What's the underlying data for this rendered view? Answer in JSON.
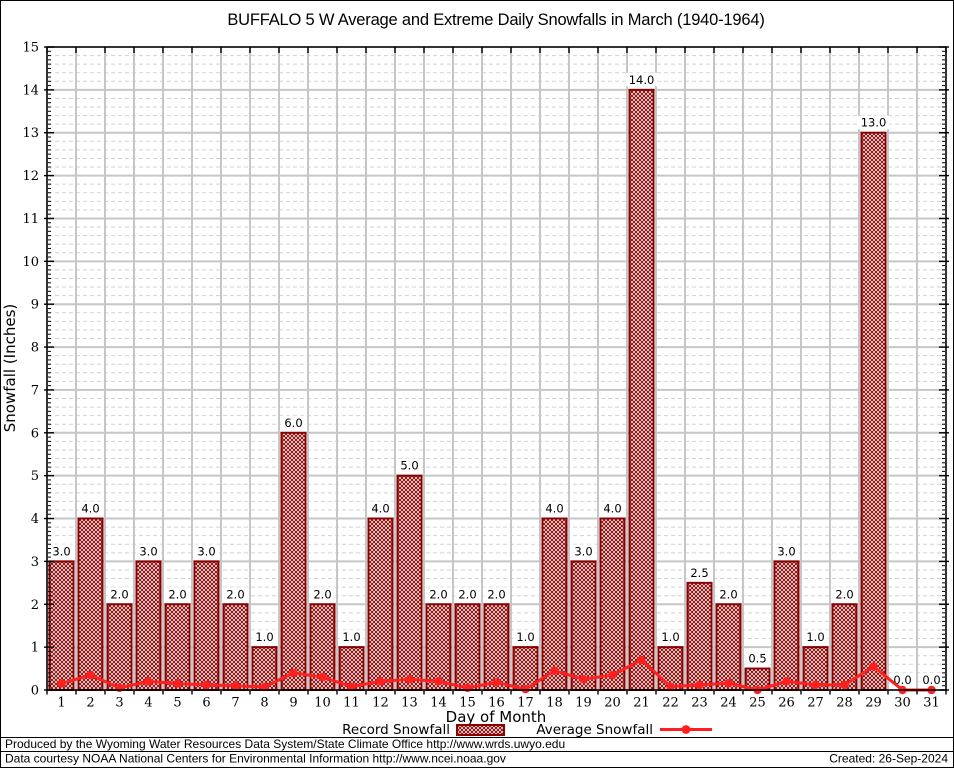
{
  "title": "BUFFALO 5 W Average and Extreme Daily Snowfalls in March (1940-1964)",
  "axes": {
    "x_label": "Day of Month",
    "y_label": "Snowfall (Inches)"
  },
  "legend": {
    "record_label": "Record Snowfall",
    "average_label": "Average Snowfall"
  },
  "footer": {
    "line1": "Produced by the Wyoming Water Resources Data System/State Climate Office http://www.wrds.uwyo.edu",
    "line2": "Data courtesy NOAA National Centers for Environmental Information http://www.ncei.noaa.gov",
    "created": "Created: 26-Sep-2024"
  },
  "colors": {
    "bar_hatch": "#8b0f0f",
    "bar_border": "#8b0000",
    "avg_line": "#ff1f1f",
    "grid_major": "#c6c6c6",
    "grid_minor": "#d2d2d2",
    "axis": "#000000",
    "label_text": "#111111"
  },
  "chart_data": {
    "type": "bar",
    "title": "BUFFALO 5 W Average and Extreme Daily Snowfalls in March (1940-1964)",
    "xlabel": "Day of Month",
    "ylabel": "Snowfall (Inches)",
    "ylim": [
      0,
      15
    ],
    "y_major_step": 1,
    "y_minor_step": 0.2,
    "grid": true,
    "legend_position": "bottom",
    "categories": [
      "1",
      "2",
      "3",
      "4",
      "5",
      "6",
      "7",
      "8",
      "9",
      "10",
      "11",
      "12",
      "13",
      "14",
      "15",
      "16",
      "17",
      "18",
      "19",
      "20",
      "21",
      "22",
      "23",
      "24",
      "25",
      "26",
      "27",
      "28",
      "29",
      "30",
      "31"
    ],
    "series": [
      {
        "name": "Record Snowfall",
        "type": "bar",
        "values": [
          3.0,
          4.0,
          2.0,
          3.0,
          2.0,
          3.0,
          2.0,
          1.0,
          6.0,
          2.0,
          1.0,
          4.0,
          5.0,
          2.0,
          2.0,
          2.0,
          1.0,
          4.0,
          3.0,
          4.0,
          14.0,
          1.0,
          2.5,
          2.0,
          0.5,
          3.0,
          1.0,
          2.0,
          13.0,
          0.0,
          0.0
        ],
        "data_labels": [
          "3.0",
          "4.0",
          "2.0",
          "3.0",
          "2.0",
          "3.0",
          "2.0",
          "1.0",
          "6.0",
          "2.0",
          "1.0",
          "4.0",
          "5.0",
          "2.0",
          "2.0",
          "2.0",
          "1.0",
          "4.0",
          "3.0",
          "4.0",
          "14.0",
          "1.0",
          "2.5",
          "2.0",
          "0.5",
          "3.0",
          "1.0",
          "2.0",
          "13.0",
          "0.0",
          "0.0"
        ]
      },
      {
        "name": "Average Snowfall",
        "type": "line",
        "values": [
          0.15,
          0.35,
          0.05,
          0.2,
          0.15,
          0.12,
          0.1,
          0.07,
          0.4,
          0.3,
          0.08,
          0.2,
          0.25,
          0.2,
          0.05,
          0.18,
          0.02,
          0.45,
          0.25,
          0.35,
          0.7,
          0.08,
          0.12,
          0.16,
          0.0,
          0.2,
          0.12,
          0.12,
          0.55,
          0.0,
          0.0
        ]
      }
    ]
  }
}
